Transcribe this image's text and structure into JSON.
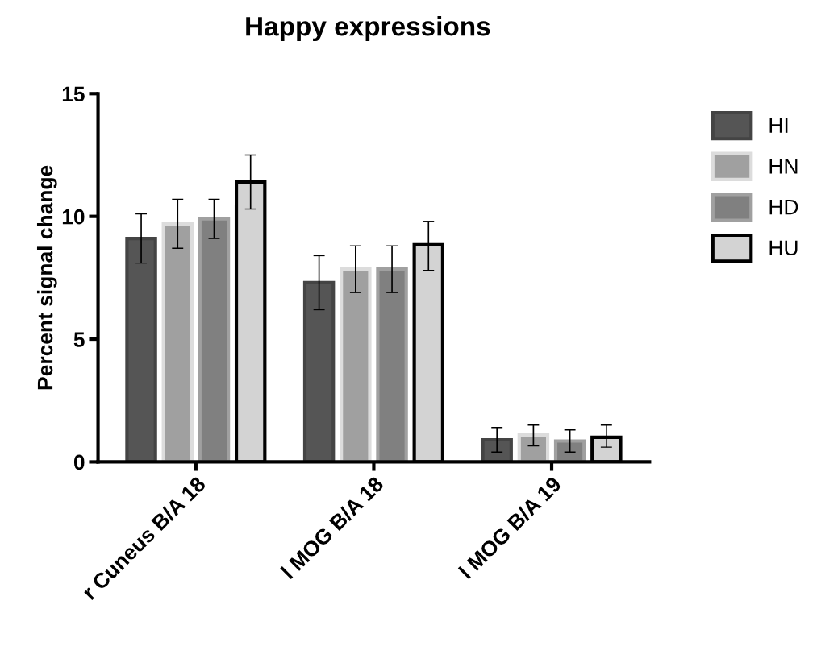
{
  "chart_data": {
    "type": "bar",
    "title": "Happy expressions",
    "ylabel": "Percent signal change",
    "categories": [
      "r Cuneus B/A 18",
      "l MOG B/A 18",
      "l MOG B/A 19"
    ],
    "series": [
      {
        "name": "HI",
        "color": "#555555",
        "values": [
          9.1,
          7.3,
          0.9
        ],
        "errors": [
          [
            8.1,
            10.1
          ],
          [
            6.2,
            8.4
          ],
          [
            0.4,
            1.4
          ]
        ]
      },
      {
        "name": "HN",
        "color": "#a0a0a0",
        "values": [
          9.7,
          7.85,
          1.1
        ],
        "errors": [
          [
            8.7,
            10.7
          ],
          [
            6.9,
            8.8
          ],
          [
            0.65,
            1.5
          ]
        ]
      },
      {
        "name": "HD",
        "color": "#808080",
        "values": [
          9.9,
          7.85,
          0.85
        ],
        "errors": [
          [
            9.1,
            10.7
          ],
          [
            6.9,
            8.8
          ],
          [
            0.4,
            1.3
          ]
        ]
      },
      {
        "name": "HU",
        "color": "#d3d3d3",
        "values": [
          11.4,
          8.85,
          1.0
        ],
        "errors": [
          [
            10.3,
            12.5
          ],
          [
            7.8,
            9.8
          ],
          [
            0.6,
            1.5
          ]
        ]
      }
    ],
    "ylim": [
      0,
      15
    ],
    "yticks": [
      0,
      5,
      10,
      15
    ],
    "grid": false,
    "legend": "top right"
  }
}
